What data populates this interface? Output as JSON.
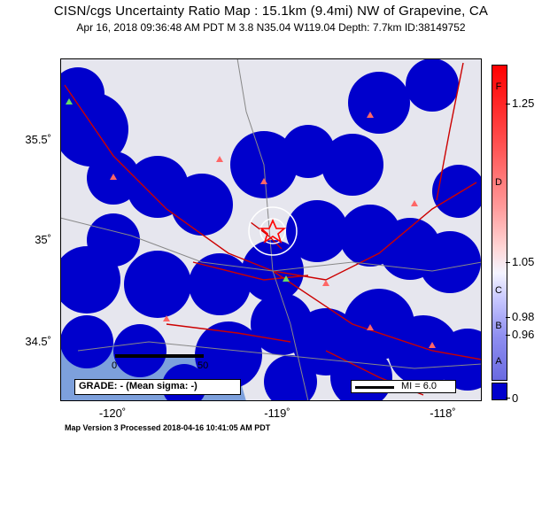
{
  "title": "CISN/cgs Uncertainty Ratio Map : 15.1km (9.4mi) NW of Grapevine, CA",
  "subtitle": "Apr 16, 2018 09:36:48 AM PDT   M 3.8   N35.04 W119.04   Depth: 7.7km   ID:38149752",
  "axes": {
    "lat_labels": [
      "35.5˚",
      "35˚",
      "34.5˚"
    ],
    "lon_labels": [
      "-120˚",
      "-119˚",
      "-118˚"
    ]
  },
  "colorbar": {
    "letters": [
      "F",
      "D",
      "C",
      "B",
      "A"
    ],
    "ticks": [
      "1.25",
      "1.05",
      "0.98",
      "0.96",
      "0"
    ],
    "colors": {
      "high": "#ff0000",
      "mid": "#f4f4ff",
      "low": "#0000cc"
    }
  },
  "legend": {
    "grade": "GRADE: - (Mean sigma: -)",
    "mi": "MI = 6.0"
  },
  "scale": {
    "left": "0",
    "right": "50"
  },
  "footer": "Map Version 3 Processed 2018-04-16 10:41:05 AM PDT",
  "colors": {
    "uncertainty_blue": "#0000cc",
    "land": "#e6e6ee",
    "ocean": "#7da0dc",
    "fault": "#cc0000",
    "road": "#888888"
  }
}
